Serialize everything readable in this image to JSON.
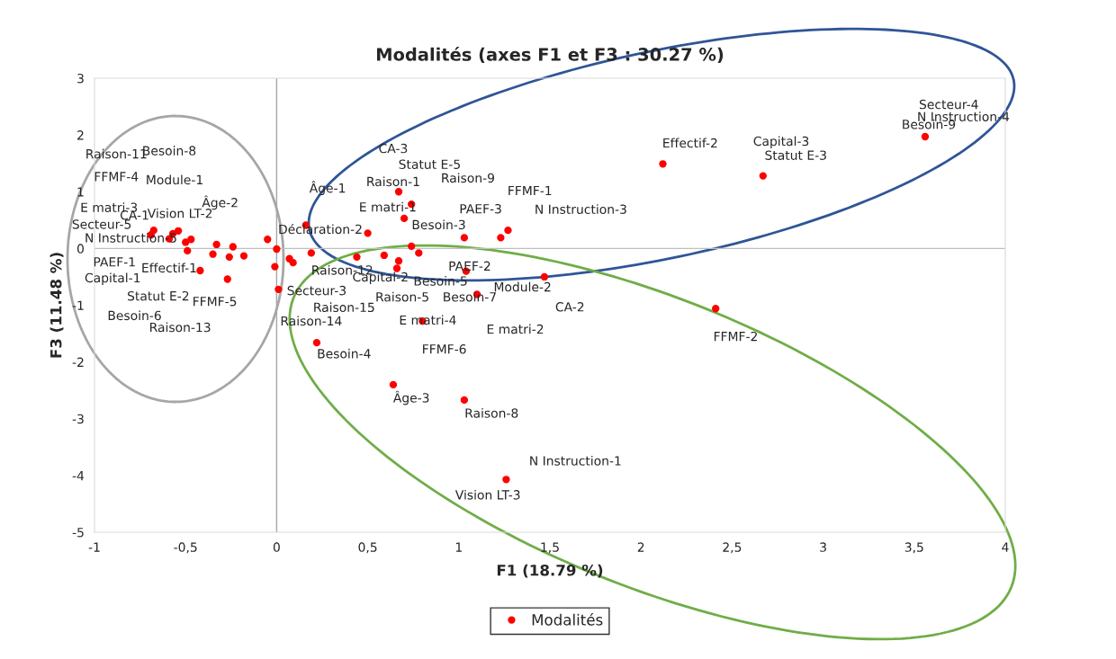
{
  "chart_data": {
    "type": "scatter",
    "title": "Modalités (axes F1 et F3 : 30.27 %)",
    "xlabel": "F1 (18.79 %)",
    "ylabel": "F3 (11.48 %)",
    "xlim": [
      -1,
      4
    ],
    "xticks": [
      {
        "value": -1,
        "label": "-1"
      },
      {
        "value": -0.5,
        "label": "-0,5"
      },
      0,
      {
        "value": 0.5,
        "label": "0,5"
      },
      1,
      {
        "value": 1.5,
        "label": "1,5"
      },
      2,
      {
        "value": 2.5,
        "label": "2,5"
      },
      3,
      {
        "value": 3.5,
        "label": "3,5"
      },
      4
    ],
    "ylim": [
      -5,
      3
    ],
    "yticks": [
      -5,
      -4,
      -3,
      -2,
      -1,
      0,
      1,
      2,
      3
    ],
    "grid": false,
    "ref_lines": [
      {
        "axis": "x",
        "value": 0,
        "color": "#a6a6a6"
      },
      {
        "axis": "y",
        "value": 0,
        "color": "#bfbfbf"
      }
    ],
    "legend": "bottom",
    "marker": "circle",
    "series": [
      {
        "name": "Modalités",
        "color": "#ff0000",
        "x": [
          -0.675,
          -0.69,
          -0.57,
          -0.54,
          -0.59,
          -0.47,
          -0.5,
          -0.49,
          -0.33,
          -0.24,
          -0.35,
          -0.26,
          -0.18,
          -0.42,
          -0.27,
          -0.05,
          0.0,
          -0.01,
          0.01,
          0.07,
          0.09,
          0.16,
          0.19,
          0.5,
          0.44,
          0.59,
          0.67,
          0.66,
          0.74,
          0.78,
          0.67,
          0.74,
          0.7,
          1.03,
          1.23,
          1.27,
          1.04,
          1.1,
          1.47,
          0.8,
          0.22,
          0.64,
          1.03,
          1.26,
          2.12,
          2.67,
          3.56,
          2.41
        ],
        "values": [
          0.32,
          0.24,
          0.26,
          0.31,
          0.17,
          0.16,
          0.11,
          -0.04,
          0.07,
          0.03,
          -0.1,
          -0.15,
          -0.13,
          -0.39,
          -0.54,
          0.16,
          -0.01,
          -0.32,
          -0.72,
          -0.18,
          -0.25,
          0.41,
          -0.08,
          0.27,
          -0.15,
          -0.12,
          -0.22,
          -0.35,
          0.04,
          -0.08,
          1.0,
          0.78,
          0.53,
          0.19,
          0.19,
          0.32,
          -0.4,
          -0.81,
          -0.5,
          -1.28,
          -1.66,
          -2.4,
          -2.67,
          -4.07,
          1.49,
          1.28,
          1.97,
          -1.06
        ]
      }
    ],
    "annotations": [
      "Raison-11",
      "Besoin-8",
      "FFMF-4",
      "Module-1",
      "Âge-2",
      "E matri-3",
      "CA-1",
      "Vision LT-2",
      "Secteur-5",
      "N Instruction-5",
      "PAEF-1",
      "Effectif-1",
      "Capital-1",
      "Statut E-2",
      "FFMF-5",
      "Besoin-6",
      "Raison-13",
      "CA-3",
      "Statut E-5",
      "Âge-1",
      "Raison-1",
      "Raison-9",
      "FFMF-1",
      "E matri-1",
      "PAEF-3",
      "N Instruction-3",
      "Besoin-3",
      "Déclaration-2",
      "Raison-12",
      "Capital-2",
      "PAEF-2",
      "Besoin-5",
      "Module-2",
      "Secteur-3",
      "Raison-5",
      "Besoin-7",
      "Raison-15",
      "CA-2",
      "Raison-14",
      "E matri-4",
      "E matri-2",
      "Besoin-4",
      "FFMF-6",
      "Âge-3",
      "Raison-8",
      "N Instruction-1",
      "Vision LT-3",
      "Effectif-2",
      "Capital-3",
      "Statut E-3",
      "Secteur-4",
      "N Instruction-4",
      "Besoin-9",
      "FFMF-2"
    ]
  }
}
